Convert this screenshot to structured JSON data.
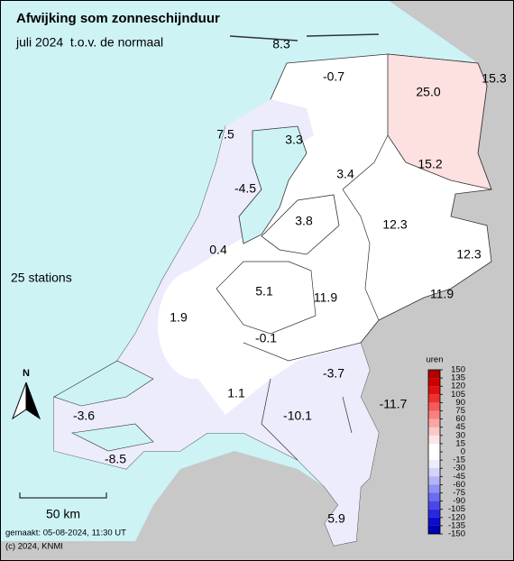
{
  "header": {
    "title": "Afwijking som zonneschijnduur",
    "subtitle": "juli 2024  t.o.v. de normaal"
  },
  "station_count": "25 stations",
  "stations": [
    "8.3",
    "-0.7",
    "15.3",
    "25.0",
    "7.5",
    "3.3",
    "3.4",
    "15.2",
    "-4.5",
    "3.8",
    "12.3",
    "12.3",
    "0.4",
    "5.1",
    "11.9",
    "11.9",
    "1.9",
    "-0.1",
    "-3.7",
    "1.1",
    "-11.7",
    "-10.1",
    "-3.6",
    "-8.5",
    "5.9"
  ],
  "north_arrow": "N",
  "scale_bar": "50 km",
  "footer": {
    "made": "gemaakt: 05-08-2024, 11:30 UT",
    "copyright": "(c) 2024, KNMI"
  },
  "legend": {
    "title": "uren",
    "ticks": [
      150,
      135,
      120,
      105,
      90,
      75,
      60,
      45,
      30,
      15,
      0,
      -15,
      -30,
      -45,
      -60,
      -75,
      -90,
      -105,
      -120,
      -135,
      -150
    ],
    "colors": [
      "#b00000",
      "#cc0000",
      "#e01010",
      "#ee3030",
      "#f55a5a",
      "#fa8080",
      "#fca5a5",
      "#fdc8c8",
      "#fee6e6",
      "#ffffff",
      "#ffffff",
      "#ececfd",
      "#d4d4fb",
      "#b4b4f8",
      "#9090f4",
      "#6c6cf0",
      "#4848ea",
      "#2828e0",
      "#0c0cd0",
      "#0000b0"
    ]
  }
}
